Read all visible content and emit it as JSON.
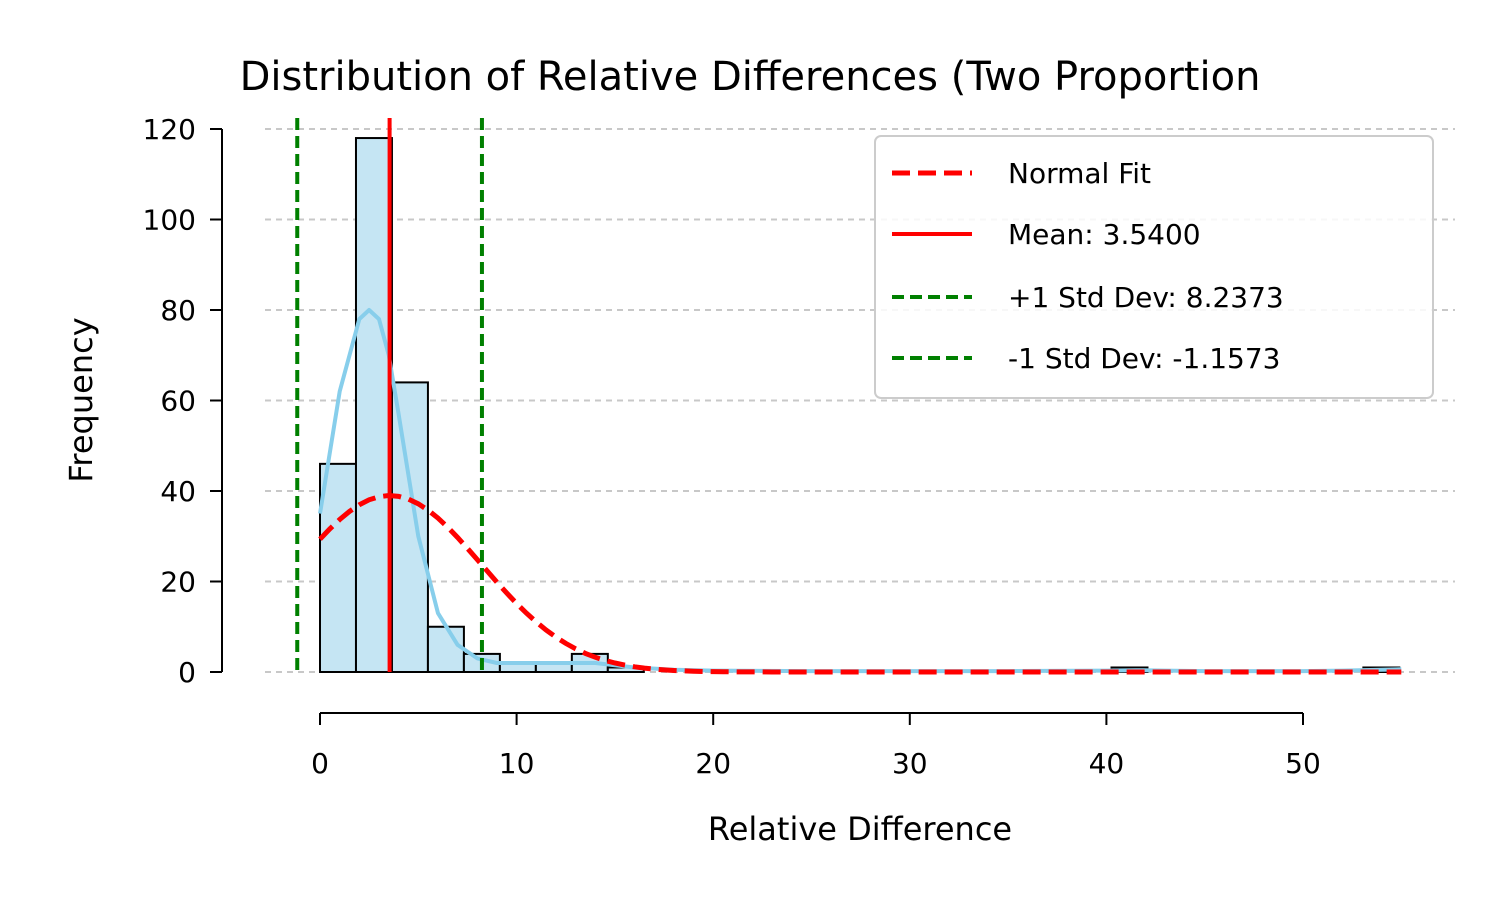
{
  "chart_data": {
    "type": "bar",
    "title": "Distribution of Relative Differences (Two Proportion",
    "xlabel": "Relative Difference",
    "ylabel": "Frequency",
    "xlim": [
      -2.7,
      58
    ],
    "ylim": [
      0,
      120
    ],
    "x_ticks": [
      0,
      10,
      20,
      30,
      40,
      50
    ],
    "y_ticks": [
      0,
      20,
      40,
      60,
      80,
      100,
      120
    ],
    "grid": "y-dashed",
    "legend_position": "upper right",
    "histogram": {
      "bin_start": 0,
      "bin_width": 1.83,
      "counts": [
        46,
        118,
        64,
        10,
        4,
        2,
        2,
        4,
        1,
        0,
        0,
        0,
        0,
        0,
        0,
        0,
        0,
        0,
        0,
        0,
        0,
        0,
        1,
        0,
        0,
        0,
        0,
        0,
        0,
        1
      ],
      "fill_color": "#c5e5f3",
      "edge_color": "#000000"
    },
    "kde_curve": {
      "color": "#87ceeb",
      "x": [
        0,
        1,
        2,
        2.5,
        3,
        3.5,
        4,
        5,
        6,
        7,
        8,
        9,
        10,
        11,
        12,
        13,
        14,
        15,
        16,
        18,
        20,
        25,
        30,
        35,
        40,
        41.5,
        43,
        45,
        50,
        52,
        54,
        55
      ],
      "y": [
        35,
        62,
        78,
        80,
        78,
        70,
        57,
        30,
        13,
        6,
        3,
        2,
        2,
        2,
        2,
        2,
        2,
        1.5,
        1,
        0.5,
        0.3,
        0.2,
        0.2,
        0.2,
        0.3,
        0.4,
        0.3,
        0.2,
        0.2,
        0.3,
        0.5,
        0.6
      ]
    },
    "series": [
      {
        "name": "Normal Fit",
        "mean": 3.54,
        "std": 4.6973,
        "peak": 39,
        "color": "#ff0000",
        "style": "dashed"
      },
      {
        "name": "Mean: 3.5400",
        "value": 3.54,
        "color": "#ff0000",
        "style": "solid"
      },
      {
        "name": "+1 Std Dev: 8.2373",
        "value": 8.2373,
        "color": "#008000",
        "style": "dashed"
      },
      {
        "name": "-1 Std Dev: -1.1573",
        "value": -1.1573,
        "color": "#008000",
        "style": "dashed"
      }
    ]
  }
}
